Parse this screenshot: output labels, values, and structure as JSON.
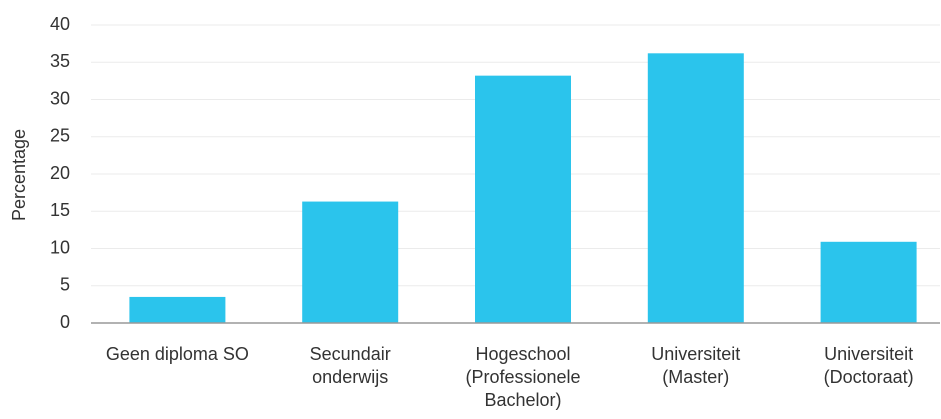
{
  "chart_data": {
    "type": "bar",
    "y_label": "Percentage",
    "categories": [
      "Geen diploma SO",
      "Secundair onderwijs",
      "Hogeschool (Professionele Bachelor)",
      "Universiteit (Master)",
      "Universiteit (Doctoraat)"
    ],
    "values": [
      3.5,
      16.3,
      33.2,
      36.2,
      10.9
    ],
    "color": "#2bc4ec",
    "ylim": [
      0,
      40
    ],
    "yticks": [
      0,
      5,
      10,
      15,
      20,
      25,
      30,
      35,
      40
    ],
    "grid": true
  }
}
